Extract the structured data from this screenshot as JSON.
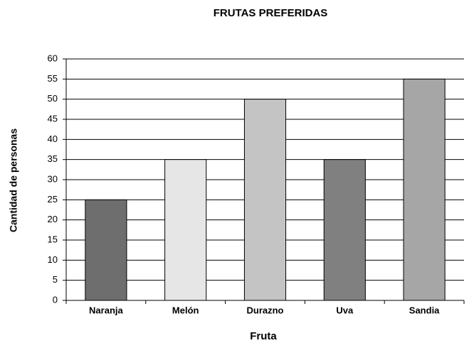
{
  "chart_data": {
    "type": "bar",
    "title": "FRUTAS PREFERIDAS",
    "x_label": "Fruta",
    "y_label": "Cantidad de personas",
    "categories": [
      "Naranja",
      "Melón",
      "Durazno",
      "Uva",
      "Sandia"
    ],
    "values": [
      25,
      35,
      50,
      35,
      55
    ],
    "colors": [
      "#6e6e6e",
      "#e6e6e6",
      "#c4c4c4",
      "#808080",
      "#a6a6a6"
    ],
    "ylim": [
      0,
      60
    ],
    "yticks": [
      0,
      5,
      10,
      15,
      20,
      25,
      30,
      35,
      40,
      45,
      50,
      55,
      60
    ],
    "grid": true
  }
}
